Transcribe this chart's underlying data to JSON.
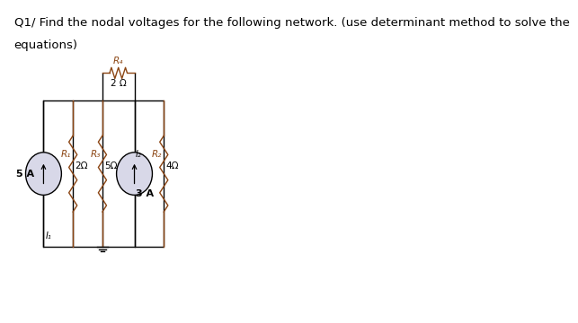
{
  "title_line1": "Q1/ Find the nodal voltages for the following network. (use determinant method to solve the",
  "title_line2": "equations)",
  "bg_color": "#ffffff",
  "circuit_color": "#000000",
  "resistor_color": "#8B4513",
  "text_color": "#000000",
  "title_fontsize": 9.5,
  "label_fontsize": 7.5,
  "components": {
    "R1_label": "R₁",
    "R1_value": "2Ω",
    "R3_label": "R₃",
    "R3_value": "5Ω",
    "R4_label": "R₄",
    "R4_value": "2 Ω",
    "R2_label": "R₂",
    "R2_value": "4Ω",
    "I1_label": "5 A",
    "I1_node": "I₁",
    "I2_label": "3 A",
    "I2_node": "I₂"
  }
}
